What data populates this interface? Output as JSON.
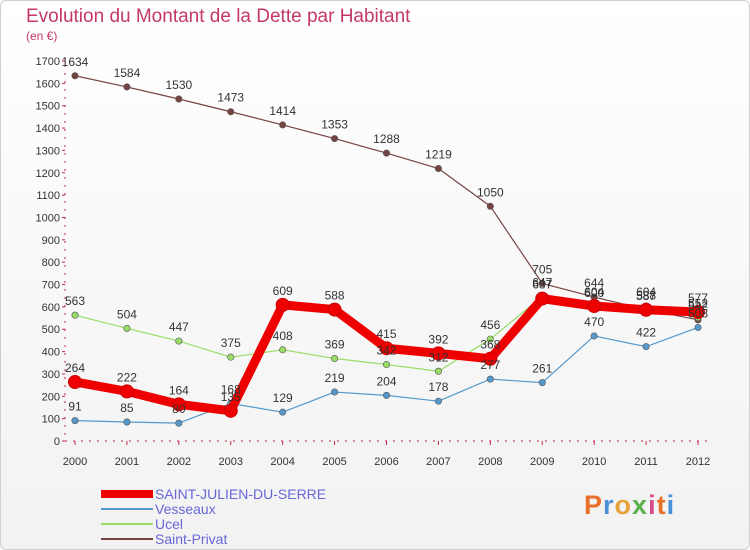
{
  "header": {
    "title": "Evolution du Montant de la Dette par Habitant",
    "subtitle": "(en €)"
  },
  "logo": {
    "text": "Proxiti",
    "colors": [
      "#e8702a",
      "#4a90d9",
      "#e8a23a",
      "#5bb04a",
      "#d64a8a",
      "#e8702a",
      "#4a90d9"
    ]
  },
  "colors": {
    "title": "#c4376c",
    "axis": "#cc2244",
    "legend_text": "#6767d8"
  },
  "chart_data": {
    "type": "line",
    "title": "Evolution du Montant de la Dette par Habitant",
    "ylabel": "(en €)",
    "xlabel": "",
    "x": [
      "2000",
      "2001",
      "2002",
      "2003",
      "2004",
      "2005",
      "2006",
      "2007",
      "2008",
      "2009",
      "2010",
      "2011",
      "2012"
    ],
    "ylim": [
      0,
      1700
    ],
    "yticks": [
      0,
      100,
      200,
      300,
      400,
      500,
      600,
      700,
      800,
      900,
      1000,
      1100,
      1200,
      1300,
      1400,
      1500,
      1600,
      1700
    ],
    "grid": false,
    "legend_position": "bottom-left",
    "series": [
      {
        "name": "SAINT-JULIEN-DU-SERRE",
        "color": "#ee0000",
        "emphasis": true,
        "values": [
          264,
          222,
          164,
          135,
          609,
          588,
          415,
          392,
          368,
          637,
          604,
          587,
          577
        ]
      },
      {
        "name": "Vesseaux",
        "color": "#5599cc",
        "emphasis": false,
        "values": [
          91,
          85,
          80,
          168,
          129,
          219,
          204,
          178,
          277,
          261,
          470,
          422,
          508
        ]
      },
      {
        "name": "Ucel",
        "color": "#99dd66",
        "emphasis": false,
        "values": [
          563,
          504,
          447,
          375,
          408,
          369,
          342,
          312,
          456,
          647,
          600,
          604,
          552
        ]
      },
      {
        "name": "Saint-Privat",
        "color": "#774444",
        "emphasis": false,
        "values": [
          1634,
          1584,
          1530,
          1473,
          1414,
          1353,
          1288,
          1219,
          1050,
          705,
          644,
          588,
          542
        ]
      }
    ]
  }
}
